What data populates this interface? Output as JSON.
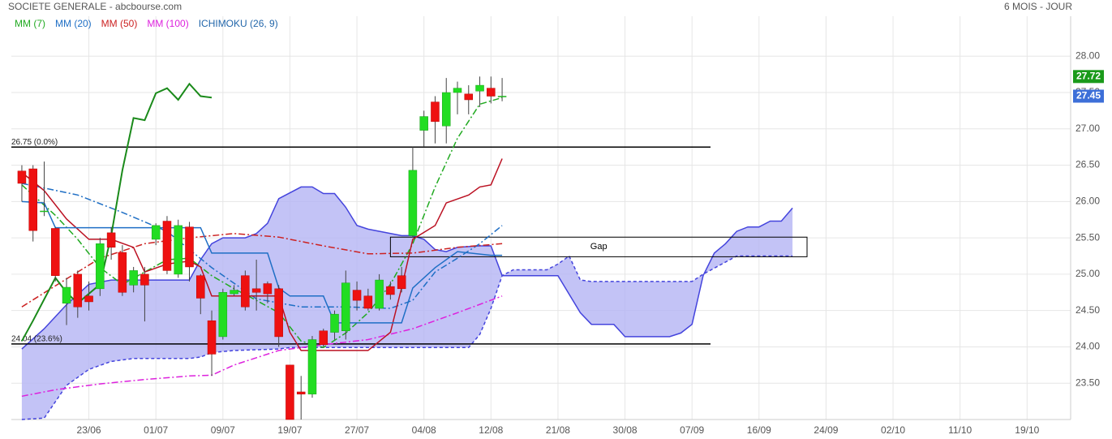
{
  "chart_data": {
    "type": "candlestick",
    "title": "SOCIETE GENERALE - abcbourse.com",
    "subtitle": "6 MOIS - JOUR",
    "up_color": "#22dd22",
    "down_color": "#ee1111",
    "open": [
      26.42,
      26.45,
      25.87,
      25.63,
      24.6,
      25.0,
      24.7,
      24.8,
      25.57,
      25.3,
      24.85,
      25.0,
      25.48,
      25.73,
      25.0,
      25.65,
      24.98,
      24.36,
      24.14,
      24.73,
      24.98,
      24.8,
      24.87,
      24.8,
      23.75,
      23.38,
      23.35,
      24.22,
      24.2,
      24.22,
      24.78,
      24.7,
      24.53,
      24.83,
      24.98,
      25.53,
      26.98,
      27.37,
      27.04,
      27.5,
      27.48,
      27.52,
      27.56,
      27.45
    ],
    "high": [
      26.5,
      26.5,
      26.55,
      25.65,
      24.95,
      25.05,
      24.9,
      25.5,
      25.65,
      25.4,
      25.1,
      25.1,
      25.7,
      25.8,
      25.75,
      25.72,
      25.0,
      24.5,
      24.8,
      24.85,
      25.05,
      25.2,
      24.9,
      24.85,
      23.75,
      23.6,
      24.15,
      24.25,
      24.5,
      25.05,
      24.9,
      24.8,
      25.0,
      24.9,
      25.1,
      26.75,
      27.25,
      27.45,
      27.7,
      27.65,
      27.6,
      27.72,
      27.72,
      27.7
    ],
    "low": [
      26.0,
      25.45,
      25.8,
      24.9,
      24.3,
      24.4,
      24.5,
      24.7,
      25.2,
      24.7,
      24.75,
      24.35,
      25.4,
      25.0,
      24.95,
      24.9,
      24.45,
      23.6,
      24.1,
      24.7,
      24.5,
      24.5,
      24.6,
      24.0,
      23.0,
      23.0,
      23.3,
      24.0,
      24.1,
      24.1,
      24.5,
      24.5,
      24.5,
      24.65,
      24.75,
      25.5,
      26.75,
      26.8,
      26.8,
      27.2,
      27.2,
      27.3,
      27.35,
      27.38
    ],
    "close": [
      26.25,
      25.6,
      25.87,
      24.98,
      24.82,
      24.55,
      24.62,
      25.42,
      25.37,
      24.75,
      25.05,
      24.85,
      25.67,
      25.05,
      25.67,
      25.1,
      24.67,
      23.9,
      24.75,
      24.78,
      24.55,
      24.75,
      24.73,
      24.14,
      23.0,
      23.35,
      24.1,
      24.03,
      24.45,
      24.88,
      24.64,
      24.53,
      24.92,
      24.72,
      24.8,
      26.43,
      27.17,
      27.1,
      27.5,
      27.56,
      27.4,
      27.6,
      27.45,
      27.45
    ],
    "xlim": [
      -0.94,
      93.9
    ],
    "xticks": [
      {
        "value": 6,
        "label": "23/06"
      },
      {
        "value": 12,
        "label": "01/07"
      },
      {
        "value": 18,
        "label": "09/07"
      },
      {
        "value": 24,
        "label": "19/07"
      },
      {
        "value": 30,
        "label": "27/07"
      },
      {
        "value": 36,
        "label": "04/08"
      },
      {
        "value": 42,
        "label": "12/08"
      },
      {
        "value": 48,
        "label": "21/08"
      },
      {
        "value": 54,
        "label": "30/08"
      },
      {
        "value": 60,
        "label": "07/09"
      },
      {
        "value": 66,
        "label": "16/09"
      },
      {
        "value": 72,
        "label": "24/09"
      },
      {
        "value": 78,
        "label": "02/10"
      },
      {
        "value": 84,
        "label": "11/10"
      },
      {
        "value": 90,
        "label": "19/10"
      }
    ],
    "ylim": [
      23.0,
      28.55
    ],
    "yticks": [
      {
        "value": 23.5,
        "label": "23.50"
      },
      {
        "value": 24,
        "label": "24.00"
      },
      {
        "value": 24.5,
        "label": "24.50"
      },
      {
        "value": 25,
        "label": "25.00"
      },
      {
        "value": 25.5,
        "label": "25.50"
      },
      {
        "value": 26,
        "label": "26.00"
      },
      {
        "value": 26.5,
        "label": "26.50"
      },
      {
        "value": 27,
        "label": "27.00"
      },
      {
        "value": 27.5,
        "label": "27.50"
      },
      {
        "value": 28,
        "label": "28.00"
      }
    ],
    "grid": true,
    "series": [
      {
        "name": "MM (7)",
        "color": "#22aa22",
        "x": [
          0,
          3,
          5,
          7,
          9,
          11,
          13,
          15,
          17,
          19,
          21,
          23,
          25,
          27,
          29,
          31,
          33,
          35,
          37,
          39,
          41,
          43
        ],
        "values": [
          26.23,
          25.81,
          25.48,
          25.09,
          24.86,
          25.03,
          25.2,
          25.22,
          24.98,
          24.8,
          24.64,
          24.47,
          24.08,
          23.99,
          24.19,
          24.47,
          24.86,
          25.42,
          26.2,
          26.87,
          27.34,
          27.43
        ]
      },
      {
        "name": "MM (20)",
        "color": "#1f6fc5",
        "x": [
          0,
          5,
          9,
          13,
          17,
          21,
          25,
          29,
          33,
          35,
          37,
          39,
          41,
          43
        ],
        "values": [
          26.25,
          26.09,
          25.85,
          25.59,
          25.09,
          24.66,
          24.55,
          24.55,
          24.53,
          24.64,
          25.03,
          25.22,
          25.42,
          25.67
        ]
      },
      {
        "name": "MM (50)",
        "color": "#cc2222",
        "x": [
          0,
          3,
          7,
          11,
          15,
          19,
          23,
          27,
          31,
          35,
          39,
          43
        ],
        "values": [
          24.55,
          24.84,
          25.22,
          25.42,
          25.5,
          25.56,
          25.51,
          25.39,
          25.28,
          25.29,
          25.37,
          25.42
        ]
      },
      {
        "name": "MM (100)",
        "color": "#dd22dd",
        "x": [
          0,
          3,
          7,
          11,
          15,
          17,
          19,
          23,
          27,
          31,
          35,
          39,
          43
        ],
        "values": [
          23.32,
          23.41,
          23.49,
          23.55,
          23.6,
          23.61,
          23.75,
          23.95,
          24.03,
          24.1,
          24.25,
          24.47,
          24.7
        ]
      }
    ],
    "ichimoku": {
      "name": "ICHIMOKU (26, 9)",
      "color": "#2266aa",
      "cloud_color": "#b4b4f4",
      "span_color": "#4444dd",
      "tenkan": {
        "color": "#bb1122",
        "x": [
          0,
          2,
          4,
          6,
          8,
          10,
          11,
          13,
          15,
          16,
          17,
          23,
          24,
          25,
          31,
          33,
          34,
          35,
          37,
          38,
          40,
          41,
          42,
          43
        ],
        "values": [
          26.4,
          26.15,
          25.76,
          25.48,
          25.48,
          25.37,
          25.03,
          25.14,
          25.18,
          25.1,
          24.7,
          24.7,
          24.2,
          23.95,
          23.95,
          24.2,
          24.81,
          25.48,
          25.67,
          25.98,
          26.09,
          26.2,
          26.23,
          26.59
        ]
      },
      "kijun": {
        "color": "#1f6fc5",
        "x": [
          0,
          2,
          3,
          16,
          17,
          22,
          23,
          24,
          27,
          28,
          34,
          35,
          37,
          39,
          42,
          43
        ],
        "values": [
          26.0,
          25.98,
          25.64,
          25.64,
          25.29,
          25.29,
          24.81,
          24.7,
          24.7,
          24.33,
          24.33,
          24.81,
          25.09,
          25.31,
          25.26,
          25.26
        ]
      },
      "chikou": {
        "color": "#1a8a1a",
        "x": [
          0,
          1,
          3,
          4,
          5,
          7,
          8,
          9,
          10,
          11,
          12,
          13,
          14,
          15,
          16,
          17
        ],
        "values": [
          24.08,
          24.36,
          24.95,
          24.75,
          24.6,
          24.86,
          25.53,
          26.43,
          27.15,
          27.12,
          27.49,
          27.56,
          27.4,
          27.62,
          27.45,
          27.43
        ]
      },
      "span_a": {
        "x": [
          0,
          2,
          4,
          6,
          8,
          10,
          12,
          15,
          16,
          17,
          18,
          20,
          21,
          22,
          23,
          25,
          26,
          27,
          28,
          29,
          30,
          31,
          34,
          35,
          36,
          37,
          38,
          39,
          41,
          42,
          43,
          44,
          48,
          50,
          51,
          53,
          54,
          58,
          59,
          60,
          61,
          62,
          63,
          64,
          65,
          66,
          67,
          68,
          69
        ],
        "values": [
          23.97,
          24.25,
          24.58,
          24.86,
          24.92,
          24.92,
          24.92,
          24.92,
          25.2,
          25.42,
          25.5,
          25.5,
          25.56,
          25.7,
          26.04,
          26.2,
          26.2,
          26.11,
          26.11,
          25.92,
          25.67,
          25.62,
          25.53,
          25.53,
          25.48,
          25.34,
          25.31,
          25.37,
          25.39,
          25.39,
          24.98,
          24.98,
          24.98,
          24.47,
          24.31,
          24.31,
          24.14,
          24.14,
          24.19,
          24.31,
          24.98,
          25.29,
          25.42,
          25.59,
          25.65,
          25.65,
          25.73,
          25.73,
          25.91
        ]
      },
      "span_b": {
        "x": [
          0,
          2,
          4,
          6,
          8,
          10,
          15,
          16,
          17,
          19,
          23,
          24,
          40,
          41,
          42,
          43,
          44,
          47,
          48,
          49,
          50,
          51,
          60,
          61,
          64,
          69
        ],
        "values": [
          23.0,
          23.02,
          23.47,
          23.69,
          23.8,
          23.84,
          23.84,
          23.86,
          23.92,
          23.95,
          23.97,
          23.99,
          23.99,
          24.17,
          24.53,
          24.98,
          25.06,
          25.06,
          25.14,
          25.25,
          24.92,
          24.9,
          24.9,
          25.0,
          25.25,
          25.25
        ]
      }
    },
    "levels": [
      {
        "value": 26.75,
        "label": "26.75  (0.0%)"
      },
      {
        "value": 24.04,
        "label": "24.04  (23.6%)"
      }
    ],
    "gap": {
      "label": "Gap",
      "low": 25.24,
      "high": 25.51,
      "x": [
        33,
        70.3
      ]
    },
    "price_tags": [
      {
        "value": 27.72,
        "color": "#1a9a1a"
      },
      {
        "value": 27.45,
        "color": "#3d6fd8"
      }
    ]
  }
}
